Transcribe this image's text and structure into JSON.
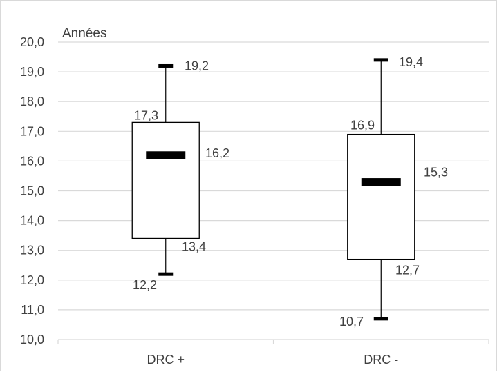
{
  "chart_data": {
    "type": "boxplot",
    "unit_label": "Années",
    "categories": [
      "DRC +",
      "DRC -"
    ],
    "ylim": [
      10.0,
      20.0
    ],
    "y_ticks": [
      10.0,
      11.0,
      12.0,
      13.0,
      14.0,
      15.0,
      16.0,
      17.0,
      18.0,
      19.0,
      20.0
    ],
    "y_tick_labels": [
      "10,0",
      "11,0",
      "12,0",
      "13,0",
      "14,0",
      "15,0",
      "16,0",
      "17,0",
      "18,0",
      "19,0",
      "20,0"
    ],
    "grid": true,
    "boxes": [
      {
        "category": "DRC +",
        "min": 12.2,
        "q1": 13.4,
        "median": 16.2,
        "q3": 17.3,
        "max": 19.2,
        "labels": {
          "min": "12,2",
          "q1": "13,4",
          "median": "16,2",
          "q3": "17,3",
          "max": "19,2"
        }
      },
      {
        "category": "DRC -",
        "min": 10.7,
        "q1": 12.7,
        "median": 15.3,
        "q3": 16.9,
        "max": 19.4,
        "labels": {
          "min": "10,7",
          "q1": "12,7",
          "median": "15,3",
          "q3": "16,9",
          "max": "19,4"
        }
      }
    ],
    "colors": {
      "box_fill": "#ffffff",
      "stroke": "#000000",
      "grid": "#d9d9d9",
      "text": "#404040"
    }
  }
}
